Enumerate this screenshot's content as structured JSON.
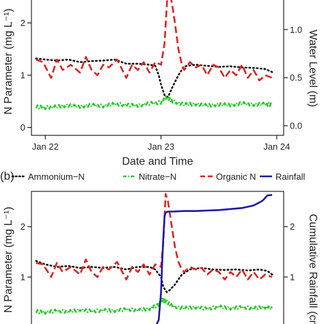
{
  "chart_data": [
    {
      "panel_label": "",
      "type": "line",
      "xlabel": "Date and Time",
      "ylabel": "N Parameter (mg L⁻¹)",
      "y2label": "Water Level (m)",
      "x_ticks": [
        {
          "t": 0.0,
          "label": "Jan 22"
        },
        {
          "t": 1.0,
          "label": "Jan 23"
        },
        {
          "t": 2.0,
          "label": "Jan 24"
        }
      ],
      "xlim": [
        -0.12,
        2.06
      ],
      "ylim": [
        -0.15,
        2.7
      ],
      "y_ticks": [
        0,
        1,
        2
      ],
      "y2lim": [
        -0.1,
        1.45
      ],
      "y2_ticks": [
        0.0,
        0.5,
        1.0
      ],
      "y2_tick_labels": [
        "0.0",
        "0.5",
        "1.0"
      ],
      "series": [
        {
          "name": "Ammonium-N",
          "axis": "left",
          "color": "#111111",
          "style": "dotted",
          "x": [
            -0.08,
            0.0,
            0.1,
            0.2,
            0.3,
            0.4,
            0.5,
            0.6,
            0.7,
            0.8,
            0.9,
            0.95,
            0.98,
            1.0,
            1.03,
            1.06,
            1.1,
            1.15,
            1.2,
            1.3,
            1.4,
            1.5,
            1.6,
            1.7,
            1.8,
            1.9,
            1.96
          ],
          "y": [
            1.32,
            1.3,
            1.28,
            1.3,
            1.25,
            1.27,
            1.28,
            1.3,
            1.22,
            1.22,
            1.2,
            1.18,
            1.0,
            0.82,
            0.62,
            0.58,
            0.78,
            1.0,
            1.17,
            1.2,
            1.18,
            1.16,
            1.17,
            1.15,
            1.14,
            1.12,
            1.06
          ]
        },
        {
          "name": "Nitrate-N",
          "axis": "left",
          "color": "#22cc22",
          "style": "dashdot",
          "x": [
            -0.08,
            0.0,
            0.1,
            0.2,
            0.3,
            0.4,
            0.5,
            0.6,
            0.7,
            0.8,
            0.9,
            1.0,
            1.05,
            1.1,
            1.2,
            1.3,
            1.4,
            1.5,
            1.6,
            1.7,
            1.8,
            1.9,
            1.96
          ],
          "y": [
            0.4,
            0.38,
            0.4,
            0.42,
            0.4,
            0.43,
            0.41,
            0.45,
            0.43,
            0.42,
            0.46,
            0.48,
            0.58,
            0.5,
            0.44,
            0.45,
            0.42,
            0.44,
            0.43,
            0.46,
            0.44,
            0.45,
            0.43
          ],
          "wiggle": 0.03
        },
        {
          "name": "Organic N",
          "axis": "left",
          "color": "#dd2222",
          "style": "dashed",
          "x": [
            -0.08,
            -0.02,
            0.05,
            0.1,
            0.15,
            0.22,
            0.3,
            0.35,
            0.4,
            0.45,
            0.5,
            0.55,
            0.62,
            0.7,
            0.75,
            0.8,
            0.85,
            0.9,
            0.95,
            1.0,
            1.03,
            1.06,
            1.08,
            1.1,
            1.12,
            1.15,
            1.18,
            1.2,
            1.25,
            1.3,
            1.35,
            1.4,
            1.45,
            1.5,
            1.55,
            1.6,
            1.65,
            1.7,
            1.75,
            1.8,
            1.85,
            1.9,
            1.96
          ],
          "y": [
            1.3,
            1.25,
            0.95,
            1.3,
            1.1,
            1.2,
            1.05,
            1.35,
            1.1,
            1.0,
            1.2,
            1.15,
            1.3,
            0.95,
            1.2,
            1.1,
            1.25,
            1.05,
            1.25,
            1.2,
            1.6,
            2.7,
            2.55,
            2.3,
            2.0,
            1.5,
            1.2,
            1.1,
            1.25,
            1.15,
            1.2,
            1.0,
            1.2,
            1.15,
            0.95,
            1.1,
            1.0,
            1.2,
            0.95,
            1.1,
            0.9,
            1.0,
            0.95
          ]
        }
      ]
    },
    {
      "panel_label": "(b)",
      "type": "line",
      "xlabel": "",
      "ylabel": "N Parameter (mg L⁻¹)",
      "y2label": "Cumulative Rainfall (cm)",
      "xlim": [
        -0.12,
        2.06
      ],
      "ylim": [
        -0.15,
        2.7
      ],
      "y_ticks": [
        1,
        2
      ],
      "y2lim": [
        -0.15,
        2.7
      ],
      "y2_ticks": [
        1,
        2
      ],
      "legend": {
        "placement": "top",
        "entries": [
          "Ammonium−N",
          "Nitrate−N",
          "Organic N",
          "Rainfall"
        ]
      },
      "series": [
        {
          "name": "Ammonium−N",
          "axis": "left",
          "color": "#111111",
          "style": "dotted",
          "x": [
            -0.08,
            0.0,
            0.1,
            0.2,
            0.3,
            0.4,
            0.5,
            0.6,
            0.7,
            0.8,
            0.9,
            0.95,
            1.0,
            1.02,
            1.05,
            1.08,
            1.12,
            1.18,
            1.25,
            1.35,
            1.45,
            1.55,
            1.65,
            1.75,
            1.85,
            1.92,
            1.96
          ],
          "y": [
            1.32,
            1.25,
            1.2,
            1.22,
            1.18,
            1.2,
            1.18,
            1.2,
            1.15,
            1.2,
            1.2,
            1.15,
            1.0,
            0.8,
            0.7,
            0.75,
            0.85,
            1.05,
            1.15,
            1.18,
            1.15,
            1.14,
            1.15,
            1.13,
            1.15,
            1.12,
            1.05
          ]
        },
        {
          "name": "Nitrate−N",
          "axis": "left",
          "color": "#22cc22",
          "style": "dashdot",
          "x": [
            -0.08,
            0.0,
            0.1,
            0.2,
            0.3,
            0.4,
            0.5,
            0.6,
            0.7,
            0.8,
            0.9,
            0.98,
            1.0,
            1.04,
            1.1,
            1.2,
            1.3,
            1.4,
            1.5,
            1.6,
            1.7,
            1.8,
            1.9,
            1.96
          ],
          "y": [
            0.32,
            0.3,
            0.33,
            0.31,
            0.35,
            0.32,
            0.34,
            0.33,
            0.36,
            0.34,
            0.37,
            0.45,
            0.55,
            0.52,
            0.42,
            0.38,
            0.4,
            0.37,
            0.41,
            0.38,
            0.4,
            0.38,
            0.4,
            0.38
          ],
          "wiggle": 0.03
        },
        {
          "name": "Organic N",
          "axis": "left",
          "color": "#dd2222",
          "style": "dashed",
          "x": [
            -0.08,
            -0.02,
            0.05,
            0.1,
            0.15,
            0.22,
            0.3,
            0.35,
            0.4,
            0.45,
            0.5,
            0.55,
            0.62,
            0.7,
            0.75,
            0.8,
            0.85,
            0.9,
            0.95,
            1.0,
            1.02,
            1.04,
            1.06,
            1.08,
            1.1,
            1.12,
            1.15,
            1.18,
            1.2,
            1.25,
            1.3,
            1.35,
            1.4,
            1.45,
            1.5,
            1.55,
            1.6,
            1.65,
            1.7,
            1.75,
            1.8,
            1.85,
            1.9,
            1.96
          ],
          "y": [
            1.28,
            1.25,
            1.0,
            1.28,
            1.1,
            1.2,
            1.05,
            1.35,
            1.1,
            1.0,
            1.2,
            1.15,
            1.3,
            0.95,
            1.2,
            1.1,
            1.25,
            1.05,
            1.25,
            1.2,
            1.7,
            2.65,
            2.5,
            2.2,
            1.9,
            1.6,
            1.3,
            1.15,
            1.1,
            1.2,
            1.15,
            1.18,
            1.05,
            1.15,
            1.1,
            0.95,
            1.1,
            1.0,
            1.15,
            0.95,
            1.1,
            0.95,
            1.05,
            1.0
          ]
        },
        {
          "name": "Rainfall",
          "axis": "right",
          "color": "#1a1aa6",
          "style": "solid",
          "x": [
            0.85,
            0.9,
            0.93,
            0.96,
            0.98,
            1.0,
            1.01,
            1.02,
            1.03,
            1.04,
            1.06,
            1.1,
            1.2,
            1.3,
            1.4,
            1.5,
            1.6,
            1.7,
            1.8,
            1.85,
            1.88,
            1.92,
            1.96
          ],
          "y": [
            -0.15,
            -0.1,
            -0.05,
            0.05,
            0.15,
            0.7,
            1.3,
            1.8,
            2.2,
            2.28,
            2.3,
            2.3,
            2.31,
            2.31,
            2.32,
            2.33,
            2.35,
            2.37,
            2.42,
            2.48,
            2.52,
            2.62,
            2.63
          ]
        }
      ]
    }
  ]
}
